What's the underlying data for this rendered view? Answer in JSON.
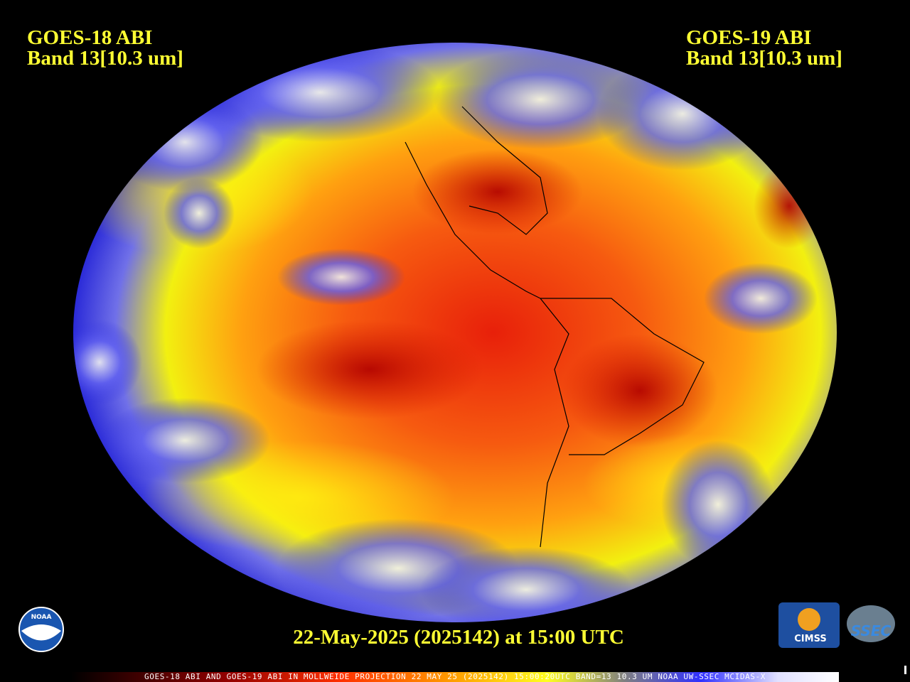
{
  "header": {
    "left": {
      "satellite": "GOES-18 ABI",
      "band": "Band 13[10.3 um]"
    },
    "right": {
      "satellite": "GOES-19 ABI",
      "band": "Band 13[10.3 um]"
    }
  },
  "caption": "22-May-2025 (2025142) at 15:00 UTC",
  "footer": "GOES-18 ABI AND GOES-19 ABI IN MOLLWEIDE PROJECTION 22 MAY 25 (2025142) 15:00:20UTC BAND=13 10.3 UM NOAA UW-SSEC MCIDAS-X",
  "logos": {
    "noaa": "NOAA",
    "cimss": "CIMSS",
    "ssec": "SSEC"
  }
}
